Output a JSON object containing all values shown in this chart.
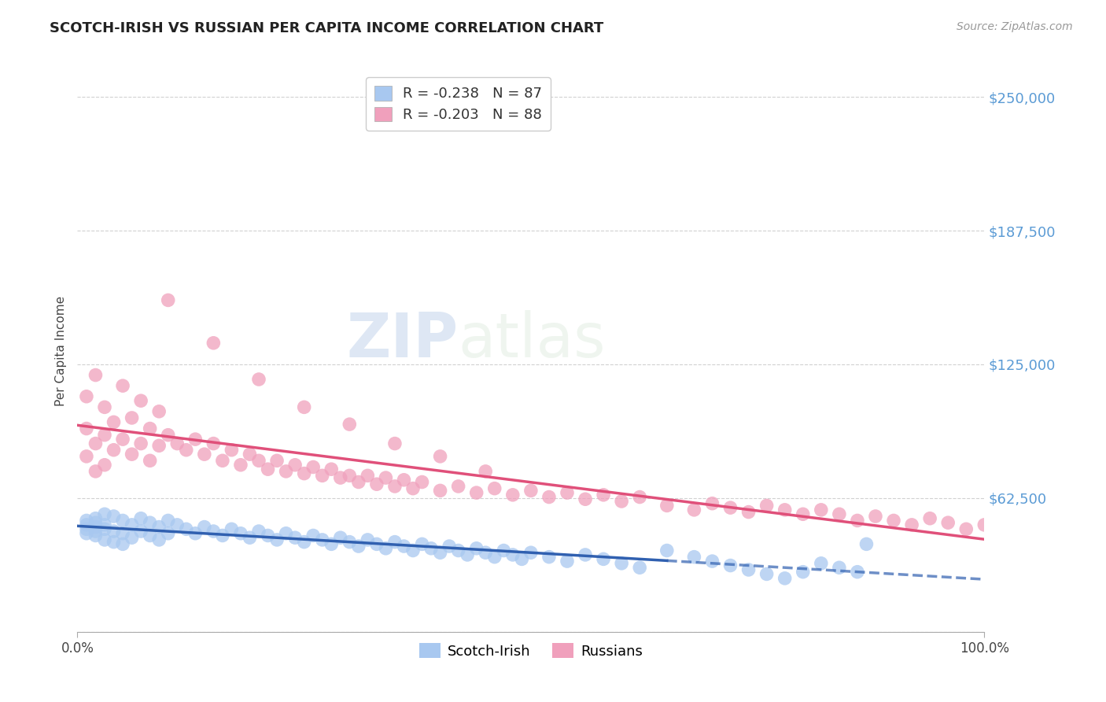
{
  "title": "SCOTCH-IRISH VS RUSSIAN PER CAPITA INCOME CORRELATION CHART",
  "source_text": "Source: ZipAtlas.com",
  "ylabel": "Per Capita Income",
  "xlim": [
    0,
    100
  ],
  "ylim": [
    0,
    262500
  ],
  "yticks": [
    0,
    62500,
    125000,
    187500,
    250000
  ],
  "ytick_labels": [
    "",
    "$62,500",
    "$125,000",
    "$187,500",
    "$250,000"
  ],
  "xtick_labels": [
    "0.0%",
    "100.0%"
  ],
  "legend_entry1": "R = -0.238   N = 87",
  "legend_entry2": "R = -0.203   N = 88",
  "legend_label1": "Scotch-Irish",
  "legend_label2": "Russians",
  "color_scotch": "#A8C8F0",
  "color_russian": "#F0A0BC",
  "trend_color_scotch": "#3060B0",
  "trend_color_russian": "#E0507A",
  "watermark_zip": "ZIP",
  "watermark_atlas": "atlas",
  "scotch_irish_x": [
    1,
    1,
    1,
    1,
    2,
    2,
    2,
    2,
    2,
    3,
    3,
    3,
    3,
    4,
    4,
    4,
    5,
    5,
    5,
    6,
    6,
    7,
    7,
    8,
    8,
    9,
    9,
    10,
    10,
    11,
    12,
    13,
    14,
    15,
    16,
    17,
    18,
    19,
    20,
    21,
    22,
    23,
    24,
    25,
    26,
    27,
    28,
    29,
    30,
    31,
    32,
    33,
    34,
    35,
    36,
    37,
    38,
    39,
    40,
    41,
    42,
    43,
    44,
    45,
    46,
    47,
    48,
    49,
    50,
    52,
    54,
    56,
    58,
    60,
    62,
    65,
    68,
    70,
    72,
    74,
    76,
    78,
    80,
    82,
    84,
    86,
    87
  ],
  "scotch_irish_y": [
    50000,
    48000,
    46000,
    52000,
    51000,
    49000,
    47000,
    53000,
    45000,
    55000,
    50000,
    48000,
    43000,
    54000,
    47000,
    42000,
    52000,
    46000,
    41000,
    50000,
    44000,
    53000,
    47000,
    51000,
    45000,
    49000,
    43000,
    52000,
    46000,
    50000,
    48000,
    46000,
    49000,
    47000,
    45000,
    48000,
    46000,
    44000,
    47000,
    45000,
    43000,
    46000,
    44000,
    42000,
    45000,
    43000,
    41000,
    44000,
    42000,
    40000,
    43000,
    41000,
    39000,
    42000,
    40000,
    38000,
    41000,
    39000,
    37000,
    40000,
    38000,
    36000,
    39000,
    37000,
    35000,
    38000,
    36000,
    34000,
    37000,
    35000,
    33000,
    36000,
    34000,
    32000,
    30000,
    38000,
    35000,
    33000,
    31000,
    29000,
    27000,
    25000,
    28000,
    32000,
    30000,
    28000,
    41000
  ],
  "russian_x": [
    1,
    1,
    1,
    2,
    2,
    2,
    3,
    3,
    3,
    4,
    4,
    5,
    5,
    6,
    6,
    7,
    7,
    8,
    8,
    9,
    9,
    10,
    11,
    12,
    13,
    14,
    15,
    16,
    17,
    18,
    19,
    20,
    21,
    22,
    23,
    24,
    25,
    26,
    27,
    28,
    29,
    30,
    31,
    32,
    33,
    34,
    35,
    36,
    37,
    38,
    40,
    42,
    44,
    46,
    48,
    50,
    52,
    54,
    56,
    58,
    60,
    62,
    65,
    68,
    70,
    72,
    74,
    76,
    78,
    80,
    82,
    84,
    86,
    88,
    90,
    92,
    94,
    96,
    98,
    100,
    10,
    15,
    20,
    25,
    30,
    35,
    40,
    45
  ],
  "russian_y": [
    95000,
    82000,
    110000,
    88000,
    75000,
    120000,
    92000,
    105000,
    78000,
    98000,
    85000,
    115000,
    90000,
    100000,
    83000,
    108000,
    88000,
    95000,
    80000,
    103000,
    87000,
    92000,
    88000,
    85000,
    90000,
    83000,
    88000,
    80000,
    85000,
    78000,
    83000,
    80000,
    76000,
    80000,
    75000,
    78000,
    74000,
    77000,
    73000,
    76000,
    72000,
    73000,
    70000,
    73000,
    69000,
    72000,
    68000,
    71000,
    67000,
    70000,
    66000,
    68000,
    65000,
    67000,
    64000,
    66000,
    63000,
    65000,
    62000,
    64000,
    61000,
    63000,
    59000,
    57000,
    60000,
    58000,
    56000,
    59000,
    57000,
    55000,
    57000,
    55000,
    52000,
    54000,
    52000,
    50000,
    53000,
    51000,
    48000,
    50000,
    155000,
    135000,
    118000,
    105000,
    97000,
    88000,
    82000,
    75000
  ]
}
